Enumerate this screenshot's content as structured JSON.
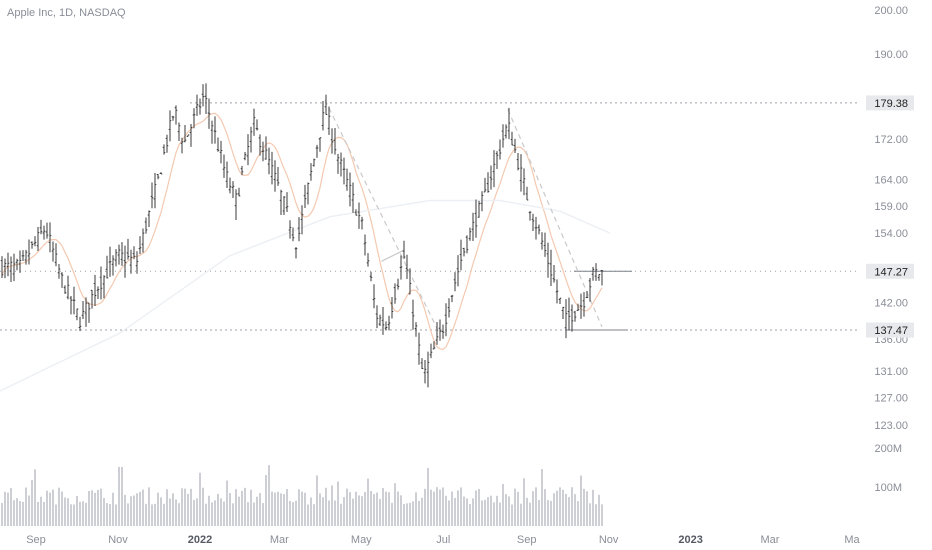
{
  "header": {
    "symbol": "Apple Inc, 1D, NASDAQ"
  },
  "colors": {
    "bar": "#3a3a3a",
    "volume": "#c8cad0",
    "trend": "#c9c9c9",
    "ma_orange": "#f4c9b0",
    "ma_light": "#eceff3",
    "ref_line": "#9ea3ab",
    "tag_bg": "#e8e9ec"
  },
  "chart_data": {
    "type": "bar",
    "title": "Apple Inc, 1D, NASDAQ",
    "scale": "log",
    "ylim": [
      123,
      200
    ],
    "y_ticks": [
      "200.00",
      "190.00",
      "172.00",
      "164.00",
      "159.00",
      "154.00",
      "142.00",
      "136.00",
      "131.00",
      "127.00",
      "123.00"
    ],
    "x_ticks": [
      {
        "label": "Sep",
        "date": "2021-09-01",
        "bold": false
      },
      {
        "label": "Nov",
        "date": "2021-11-01",
        "bold": false
      },
      {
        "label": "2022",
        "date": "2022-01-01",
        "bold": true
      },
      {
        "label": "Mar",
        "date": "2022-03-01",
        "bold": false
      },
      {
        "label": "May",
        "date": "2022-05-01",
        "bold": false
      },
      {
        "label": "Jul",
        "date": "2022-07-01",
        "bold": false
      },
      {
        "label": "Sep",
        "date": "2022-09-01",
        "bold": false
      },
      {
        "label": "Nov",
        "date": "2022-11-01",
        "bold": false
      },
      {
        "label": "2023",
        "date": "2023-01-01",
        "bold": true
      },
      {
        "label": "Mar",
        "date": "2023-03-01",
        "bold": false
      },
      {
        "label": "Ma",
        "date": "2023-05-01",
        "bold": false
      }
    ],
    "price_levels": [
      {
        "label": "179.38",
        "value": 179.38
      },
      {
        "label": "147.27",
        "value": 147.27
      },
      {
        "label": "137.47",
        "value": 137.47
      }
    ],
    "volume_ticks": [
      "200M",
      "100M"
    ],
    "series_path": [
      {
        "date": "2021-08-20",
        "close": 148
      },
      {
        "date": "2021-09-08",
        "close": 155
      },
      {
        "date": "2021-09-20",
        "close": 146
      },
      {
        "date": "2021-10-04",
        "close": 139
      },
      {
        "date": "2021-10-15",
        "close": 144
      },
      {
        "date": "2021-11-01",
        "close": 150
      },
      {
        "date": "2021-11-15",
        "close": 149
      },
      {
        "date": "2021-12-01",
        "close": 164
      },
      {
        "date": "2021-12-13",
        "close": 178
      },
      {
        "date": "2021-12-20",
        "close": 171
      },
      {
        "date": "2022-01-04",
        "close": 181
      },
      {
        "date": "2022-01-20",
        "close": 165
      },
      {
        "date": "2022-01-28",
        "close": 160
      },
      {
        "date": "2022-02-10",
        "close": 175
      },
      {
        "date": "2022-03-01",
        "close": 162
      },
      {
        "date": "2022-03-14",
        "close": 152
      },
      {
        "date": "2022-04-04",
        "close": 178
      },
      {
        "date": "2022-04-14",
        "close": 168
      },
      {
        "date": "2022-05-02",
        "close": 155
      },
      {
        "date": "2022-05-12",
        "close": 140
      },
      {
        "date": "2022-05-20",
        "close": 138
      },
      {
        "date": "2022-06-02",
        "close": 150
      },
      {
        "date": "2022-06-16",
        "close": 130
      },
      {
        "date": "2022-07-01",
        "close": 138
      },
      {
        "date": "2022-07-15",
        "close": 150
      },
      {
        "date": "2022-08-01",
        "close": 161
      },
      {
        "date": "2022-08-18",
        "close": 175
      },
      {
        "date": "2022-09-02",
        "close": 160
      },
      {
        "date": "2022-09-13",
        "close": 152
      },
      {
        "date": "2022-09-30",
        "close": 139
      },
      {
        "date": "2022-10-13",
        "close": 142
      },
      {
        "date": "2022-10-21",
        "close": 147
      }
    ],
    "trendlines": [
      {
        "from": {
          "date": "2022-04-04",
          "value": 180
        },
        "to": {
          "date": "2022-06-28",
          "value": 137
        }
      },
      {
        "from": {
          "date": "2022-08-18",
          "value": 178
        },
        "to": {
          "date": "2022-10-27",
          "value": 138
        }
      },
      {
        "from": {
          "date": "2022-05-16",
          "value": 149
        },
        "to": {
          "date": "2022-06-02",
          "value": 151
        }
      }
    ]
  }
}
